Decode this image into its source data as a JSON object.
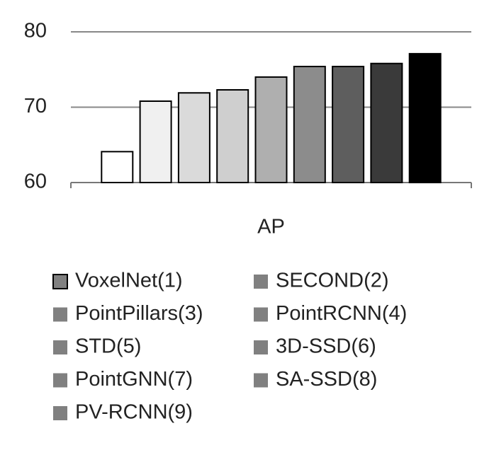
{
  "chart_data": {
    "type": "bar",
    "categories": [
      "AP"
    ],
    "series": [
      {
        "name": "VoxelNet(1)",
        "color": "#ffffff",
        "values": [
          64.1
        ]
      },
      {
        "name": "SECOND(2)",
        "color": "#f0f0f0",
        "values": [
          70.8
        ]
      },
      {
        "name": "PointPillars(3)",
        "color": "#dadada",
        "values": [
          71.9
        ]
      },
      {
        "name": "PointRCNN(4)",
        "color": "#cfcfcf",
        "values": [
          72.3
        ]
      },
      {
        "name": "STD(5)",
        "color": "#afafaf",
        "values": [
          74.0
        ]
      },
      {
        "name": "3D-SSD(6)",
        "color": "#8c8c8c",
        "values": [
          75.4
        ]
      },
      {
        "name": "PointGNN(7)",
        "color": "#5e5e5e",
        "values": [
          75.4
        ]
      },
      {
        "name": "SA-SSD(8)",
        "color": "#3a3a3a",
        "values": [
          75.8
        ]
      },
      {
        "name": "PV-RCNN(9)",
        "color": "#000000",
        "values": [
          77.1
        ]
      }
    ],
    "legend_color": "#808080",
    "ylim": [
      60,
      80
    ],
    "yticks": [
      60,
      70,
      80
    ],
    "grid": true,
    "legend": "bottom"
  }
}
